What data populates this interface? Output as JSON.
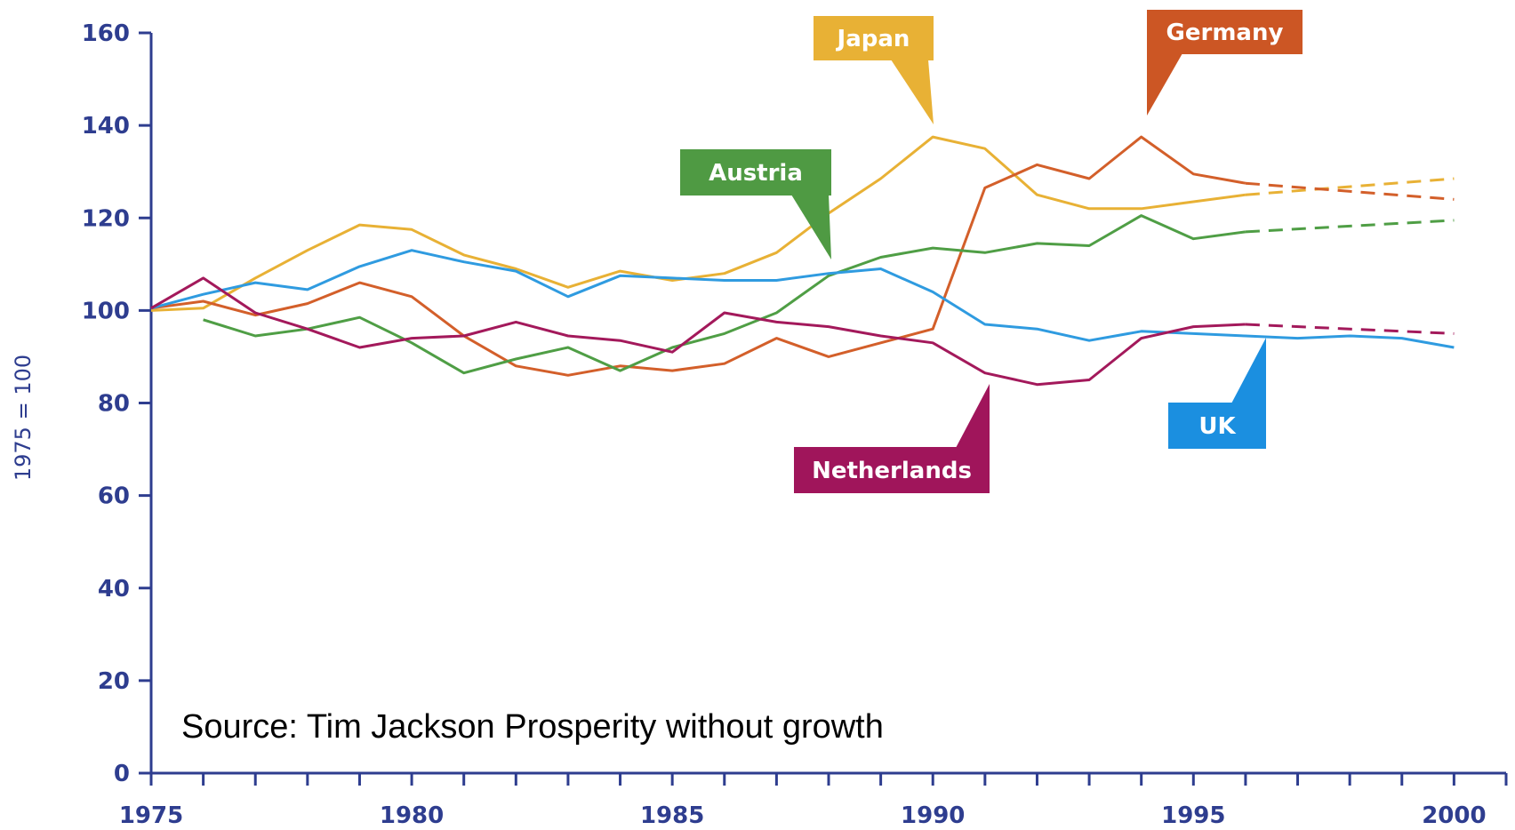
{
  "chart_data": {
    "type": "line",
    "ylabel": "1975 = 100",
    "xlabel": "",
    "x": [
      1975,
      1976,
      1977,
      1978,
      1979,
      1980,
      1981,
      1982,
      1983,
      1984,
      1985,
      1986,
      1987,
      1988,
      1989,
      1990,
      1991,
      1992,
      1993,
      1994,
      1995,
      1996,
      1997,
      1998,
      1999,
      2000
    ],
    "xlim": [
      1975,
      2001
    ],
    "ylim": [
      0,
      160
    ],
    "x_ticks": [
      "1975",
      "1980",
      "1985",
      "1990",
      "1995",
      "2000"
    ],
    "y_ticks": [
      "0",
      "20",
      "40",
      "60",
      "80",
      "100",
      "120",
      "140",
      "160"
    ],
    "annotation": "Source: Tim Jackson Prosperity without growth",
    "series": [
      {
        "name": "Japan",
        "color": "#e8b135",
        "label_color": "#e8b135",
        "points": [
          [
            1975,
            100
          ],
          [
            1976,
            100.5
          ],
          [
            1977,
            107
          ],
          [
            1978,
            113
          ],
          [
            1979,
            118.5
          ],
          [
            1980,
            117.5
          ],
          [
            1981,
            112
          ],
          [
            1982,
            109
          ],
          [
            1983,
            105
          ],
          [
            1984,
            108.5
          ],
          [
            1985,
            106.5
          ],
          [
            1986,
            108
          ],
          [
            1987,
            112.5
          ],
          [
            1988,
            121
          ],
          [
            1989,
            128.5
          ],
          [
            1990,
            137.5
          ],
          [
            1991,
            135
          ],
          [
            1992,
            125
          ],
          [
            1993,
            122
          ],
          [
            1994,
            122
          ],
          [
            1995,
            123.5
          ],
          [
            1996,
            125
          ]
        ],
        "projection": [
          [
            1996,
            125
          ],
          [
            2000,
            128.5
          ]
        ]
      },
      {
        "name": "Germany",
        "color": "#d35f2a",
        "label_color": "#cc5624",
        "points": [
          [
            1975,
            100.5
          ],
          [
            1976,
            102
          ],
          [
            1977,
            99
          ],
          [
            1978,
            101.5
          ],
          [
            1979,
            106
          ],
          [
            1980,
            103
          ],
          [
            1981,
            94.5
          ],
          [
            1982,
            88
          ],
          [
            1983,
            86
          ],
          [
            1984,
            88
          ],
          [
            1985,
            87
          ],
          [
            1986,
            88.5
          ],
          [
            1987,
            94
          ],
          [
            1988,
            90
          ],
          [
            1989,
            93
          ],
          [
            1990,
            96
          ],
          [
            1991,
            126.5
          ],
          [
            1992,
            131.5
          ],
          [
            1993,
            128.5
          ],
          [
            1994,
            137.5
          ],
          [
            1995,
            129.5
          ],
          [
            1996,
            127.5
          ]
        ],
        "projection": [
          [
            1996,
            127.5
          ],
          [
            2000,
            124
          ]
        ]
      },
      {
        "name": "Austria",
        "color": "#4f9e45",
        "label_color": "#4f9a43",
        "points": [
          [
            1976,
            98
          ],
          [
            1977,
            94.5
          ],
          [
            1978,
            96
          ],
          [
            1979,
            98.5
          ],
          [
            1980,
            93
          ],
          [
            1981,
            86.5
          ],
          [
            1982,
            89.5
          ],
          [
            1983,
            92
          ],
          [
            1984,
            87
          ],
          [
            1985,
            92
          ],
          [
            1986,
            95
          ],
          [
            1987,
            99.5
          ],
          [
            1988,
            107.5
          ],
          [
            1989,
            111.5
          ],
          [
            1990,
            113.5
          ],
          [
            1991,
            112.5
          ],
          [
            1992,
            114.5
          ],
          [
            1993,
            114
          ],
          [
            1994,
            120.5
          ],
          [
            1995,
            115.5
          ],
          [
            1996,
            117
          ]
        ],
        "projection": [
          [
            1996,
            117
          ],
          [
            2000,
            119.5
          ]
        ]
      },
      {
        "name": "UK",
        "color": "#2f9be0",
        "label_color": "#1b8fe0",
        "points": [
          [
            1975,
            100.5
          ],
          [
            1976,
            103.5
          ],
          [
            1977,
            106
          ],
          [
            1978,
            104.5
          ],
          [
            1979,
            109.5
          ],
          [
            1980,
            113
          ],
          [
            1981,
            110.5
          ],
          [
            1982,
            108.5
          ],
          [
            1983,
            103
          ],
          [
            1984,
            107.5
          ],
          [
            1985,
            107
          ],
          [
            1986,
            106.5
          ],
          [
            1987,
            106.5
          ],
          [
            1988,
            108
          ],
          [
            1989,
            109
          ],
          [
            1990,
            104
          ],
          [
            1991,
            97
          ],
          [
            1992,
            96
          ],
          [
            1993,
            93.5
          ],
          [
            1994,
            95.5
          ],
          [
            1995,
            95
          ],
          [
            1996,
            94.5
          ],
          [
            1997,
            94
          ],
          [
            1998,
            94.5
          ],
          [
            1999,
            94
          ],
          [
            2000,
            92
          ]
        ],
        "projection": []
      },
      {
        "name": "Netherlands",
        "color": "#a3195b",
        "label_color": "#a0155b",
        "points": [
          [
            1975,
            100.5
          ],
          [
            1976,
            107
          ],
          [
            1977,
            99.5
          ],
          [
            1978,
            96
          ],
          [
            1979,
            92
          ],
          [
            1980,
            94
          ],
          [
            1981,
            94.5
          ],
          [
            1982,
            97.5
          ],
          [
            1983,
            94.5
          ],
          [
            1984,
            93.5
          ],
          [
            1985,
            91
          ],
          [
            1986,
            99.5
          ],
          [
            1987,
            97.5
          ],
          [
            1988,
            96.5
          ],
          [
            1989,
            94.5
          ],
          [
            1990,
            93
          ],
          [
            1991,
            86.5
          ],
          [
            1992,
            84
          ],
          [
            1993,
            85
          ],
          [
            1994,
            94
          ],
          [
            1995,
            96.5
          ],
          [
            1996,
            97
          ]
        ],
        "projection": [
          [
            1996,
            97
          ],
          [
            2000,
            95
          ]
        ]
      }
    ]
  }
}
